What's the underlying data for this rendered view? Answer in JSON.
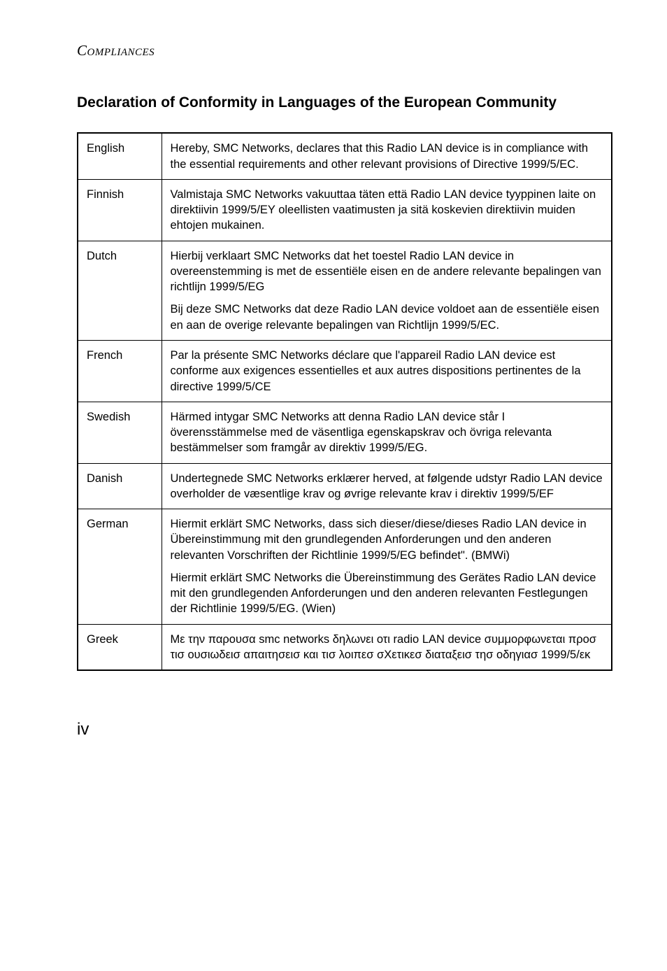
{
  "runningHeader": "Compliances",
  "sectionTitle": "Declaration of Conformity in Languages of the European Community",
  "pageNumber": "iv",
  "rows": [
    {
      "language": "English",
      "paragraphs": [
        "Hereby, SMC Networks, declares that this Radio LAN device is in compliance with the essential requirements and other relevant provisions of Directive 1999/5/EC."
      ]
    },
    {
      "language": "Finnish",
      "paragraphs": [
        "Valmistaja SMC Networks vakuuttaa täten että Radio LAN device tyyppinen laite on direktiivin 1999/5/EY oleellisten vaatimusten ja sitä koskevien direktiivin muiden ehtojen mukainen."
      ]
    },
    {
      "language": "Dutch",
      "paragraphs": [
        "Hierbij verklaart SMC Networks dat het toestel Radio LAN device in overeenstemming is met de essentiële eisen en de andere relevante bepalingen van richtlijn 1999/5/EG",
        "Bij deze SMC Networks dat deze Radio LAN device voldoet aan de essentiële eisen en aan de overige relevante bepalingen van Richtlijn 1999/5/EC."
      ]
    },
    {
      "language": "French",
      "paragraphs": [
        "Par la présente SMC Networks déclare que l'appareil Radio LAN device est conforme aux exigences essentielles et aux autres dispositions pertinentes de la directive 1999/5/CE"
      ]
    },
    {
      "language": "Swedish",
      "paragraphs": [
        "Härmed intygar SMC Networks att denna Radio LAN device står I överensstämmelse med de väsentliga egenskapskrav och övriga relevanta bestämmelser som framgår av direktiv 1999/5/EG."
      ]
    },
    {
      "language": "Danish",
      "paragraphs": [
        "Undertegnede SMC Networks erklærer herved, at følgende udstyr Radio LAN device overholder de væsentlige krav og øvrige relevante krav i direktiv 1999/5/EF"
      ]
    },
    {
      "language": "German",
      "paragraphs": [
        "Hiermit erklärt SMC Networks, dass sich dieser/diese/dieses Radio LAN device in Übereinstimmung mit den grundlegenden Anforderungen und den anderen relevanten Vorschriften der Richtlinie 1999/5/EG befindet\". (BMWi)",
        "Hiermit erklärt SMC Networks die Übereinstimmung des Gerätes Radio LAN device mit den grundlegenden Anforderungen und den anderen relevanten Festlegungen der Richtlinie 1999/5/EG. (Wien)"
      ]
    },
    {
      "language": "Greek",
      "paragraphs": [
        "Με την παρουσα smc networks δηλωνει οτι radio LAN device συμμορφωνεται προσ τισ ουσιωδεισ απαιτησεισ και τισ λοιπεσ σΧετικεσ διαταξεισ τησ οδηγιασ 1999/5/εκ"
      ]
    }
  ]
}
